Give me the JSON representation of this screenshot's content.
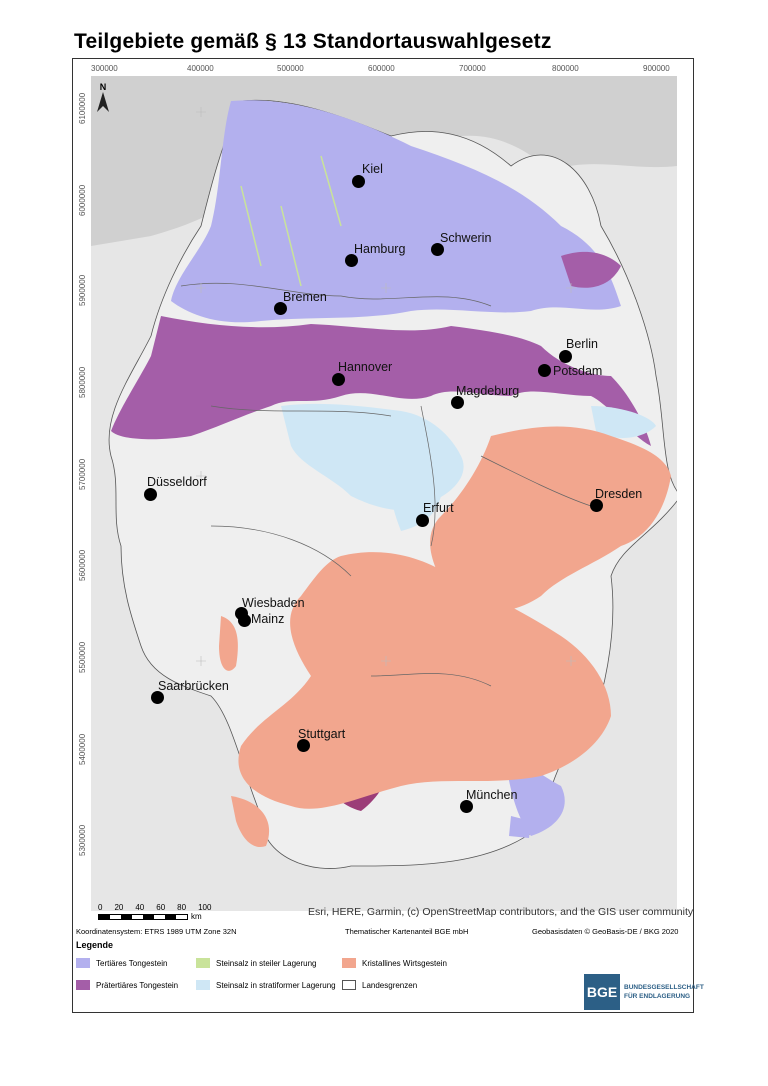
{
  "title": "Teilgebiete gemäß § 13 Standortauswahlgesetz",
  "north_label": "N",
  "x_ticks": [
    "300000",
    "400000",
    "500000",
    "600000",
    "700000",
    "800000",
    "900000"
  ],
  "y_ticks": [
    "6100000",
    "6000000",
    "5900000",
    "5800000",
    "5700000",
    "5600000",
    "5500000",
    "5400000",
    "5300000"
  ],
  "cities": [
    {
      "name": "Kiel"
    },
    {
      "name": "Hamburg"
    },
    {
      "name": "Schwerin"
    },
    {
      "name": "Bremen"
    },
    {
      "name": "Berlin"
    },
    {
      "name": "Potsdam"
    },
    {
      "name": "Hannover"
    },
    {
      "name": "Magdeburg"
    },
    {
      "name": "Düsseldorf"
    },
    {
      "name": "Erfurt"
    },
    {
      "name": "Dresden"
    },
    {
      "name": "Wiesbaden"
    },
    {
      "name": "Mainz"
    },
    {
      "name": "Saarbrücken"
    },
    {
      "name": "Stuttgart"
    },
    {
      "name": "München"
    }
  ],
  "attribution": "Esri, HERE, Garmin, (c) OpenStreetMap contributors, and the GIS user community",
  "scale_ticks": [
    "0",
    "20",
    "40",
    "60",
    "80",
    "100"
  ],
  "scale_unit": "km",
  "footer": {
    "coord_system": "Koordinatensystem: ETRS 1989 UTM Zone 32N",
    "thematic": "Thematischer Kartenanteil BGE mbH",
    "geobasis": "Geobasisdaten © GeoBasis-DE / BKG 2020"
  },
  "legend": {
    "title": "Legende",
    "items": [
      {
        "label": "Tertiäres Tongestein",
        "color": "#b3b0ee"
      },
      {
        "label": "Steinsalz in steiler Lagerung",
        "color": "#c9e39a"
      },
      {
        "label": "Kristallines Wirtsgestein",
        "color": "#f2a68e"
      },
      {
        "label": "Prätertiäres Tongestein",
        "color": "#a45ea8"
      },
      {
        "label": "Steinsalz in stratiformer Lagerung",
        "color": "#cfe7f5"
      },
      {
        "label": "Landesgrenzen",
        "color": "#ffffff"
      }
    ]
  },
  "logo": {
    "abbr": "BGE",
    "line1": "BUNDESGESELLSCHAFT",
    "line2": "FÜR ENDLAGERUNG"
  }
}
